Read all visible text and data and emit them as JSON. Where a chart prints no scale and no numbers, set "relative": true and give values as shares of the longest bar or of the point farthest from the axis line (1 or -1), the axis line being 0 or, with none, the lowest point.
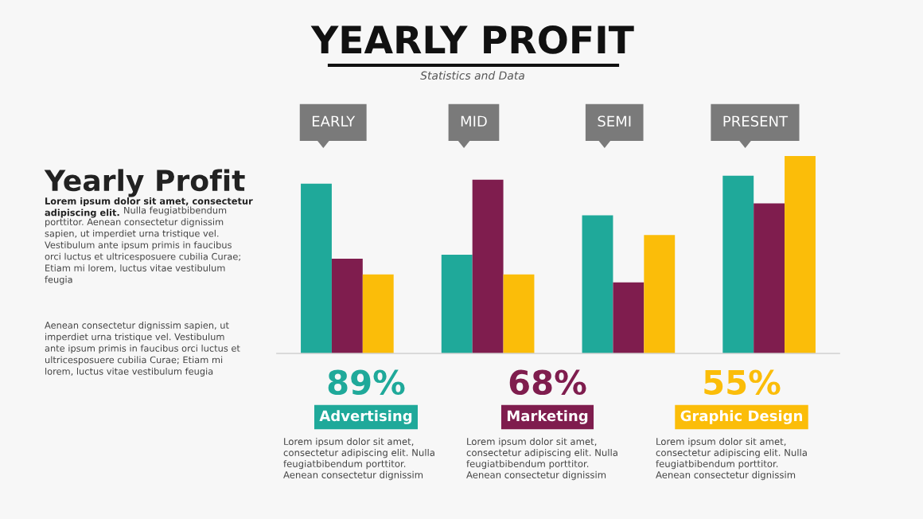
{
  "chart_data": {
    "type": "bar",
    "title": "YEARLY PROFIT",
    "subtitle": "Statistics and Data",
    "relative": true,
    "categories": [
      "EARLY",
      "MID",
      "SEMI",
      "PRESENT"
    ],
    "series": [
      {
        "name": "Advertising",
        "color": "#1fa99a",
        "values": [
          0.86,
          0.5,
          0.7,
          0.9
        ]
      },
      {
        "name": "Marketing",
        "color": "#7f1d4e",
        "values": [
          0.48,
          0.88,
          0.36,
          0.76
        ]
      },
      {
        "name": "Graphic Design",
        "color": "#fbbd09",
        "values": [
          0.4,
          0.4,
          0.6,
          1
        ]
      }
    ],
    "legend": "bottom",
    "annotations": [
      "Yearly Profit",
      "Lorem ipsum dolor sit amet, consectetur\nadipiscing elit.",
      "Nulla feugiatbibendum\nporttitor. Aenean consectetur dignissim\nsapien, ut imperdiet urna tristique vel.\nVestibulum ante ipsum primis in faucibus\norci luctus et ultricesposuere cubilia Curae;\nEtiam mi lorem, luctus vitae vestibulum\nfeugia",
      "Aenean consectetur dignissim sapien, ut\nimperdiet urna tristique vel. Vestibulum\nante ipsum primis in faucibus orci luctus et\nultricesposuere cubilia Curae; Etiam mi\nlorem, luctus vitae vestibulum feugia",
      "89%",
      "68%",
      "55%",
      "Lorem ipsum dolor sit amet,\nconsectetur adipiscing elit. Nulla\nfeugiatbibendum porttitor.\nAenean consectetur dignissim",
      "Lorem ipsum dolor sit amet,\nconsectetur adipiscing elit. Nulla\nfeugiatbibendum porttitor.\nAenean consectetur dignissim",
      "Lorem ipsum dolor sit amet,\nconsectetur adipiscing elit. Nulla\nfeugiatbibendum porttitor.\nAenean consectetur dignissim"
    ]
  }
}
